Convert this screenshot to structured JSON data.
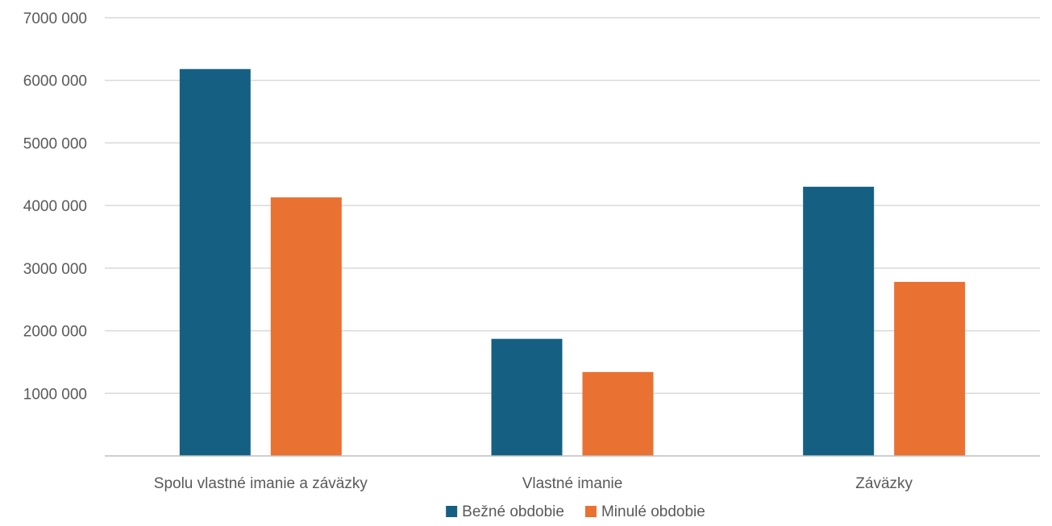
{
  "chart_data": {
    "type": "bar",
    "title": "",
    "xlabel": "",
    "ylabel": "",
    "categories": [
      "Spolu vlastné imanie a záväzky",
      "Vlastné imanie",
      "Záväzky"
    ],
    "series": [
      {
        "name": "Bežné obdobie",
        "color": "#156082",
        "values": [
          6180000,
          1870000,
          4300000
        ]
      },
      {
        "name": "Minulé obdobie",
        "color": "#e97132",
        "values": [
          4130000,
          1340000,
          2780000
        ]
      }
    ],
    "ylim": [
      0,
      7000000
    ],
    "y_ticks": [
      {
        "value": 1000000,
        "label": "1000 000"
      },
      {
        "value": 2000000,
        "label": "2000 000"
      },
      {
        "value": 3000000,
        "label": "3000 000"
      },
      {
        "value": 4000000,
        "label": "4000 000"
      },
      {
        "value": 5000000,
        "label": "5000 000"
      },
      {
        "value": 6000000,
        "label": "6000 000"
      },
      {
        "value": 7000000,
        "label": "7000 000"
      }
    ],
    "grid": true,
    "legend_position": "bottom"
  }
}
